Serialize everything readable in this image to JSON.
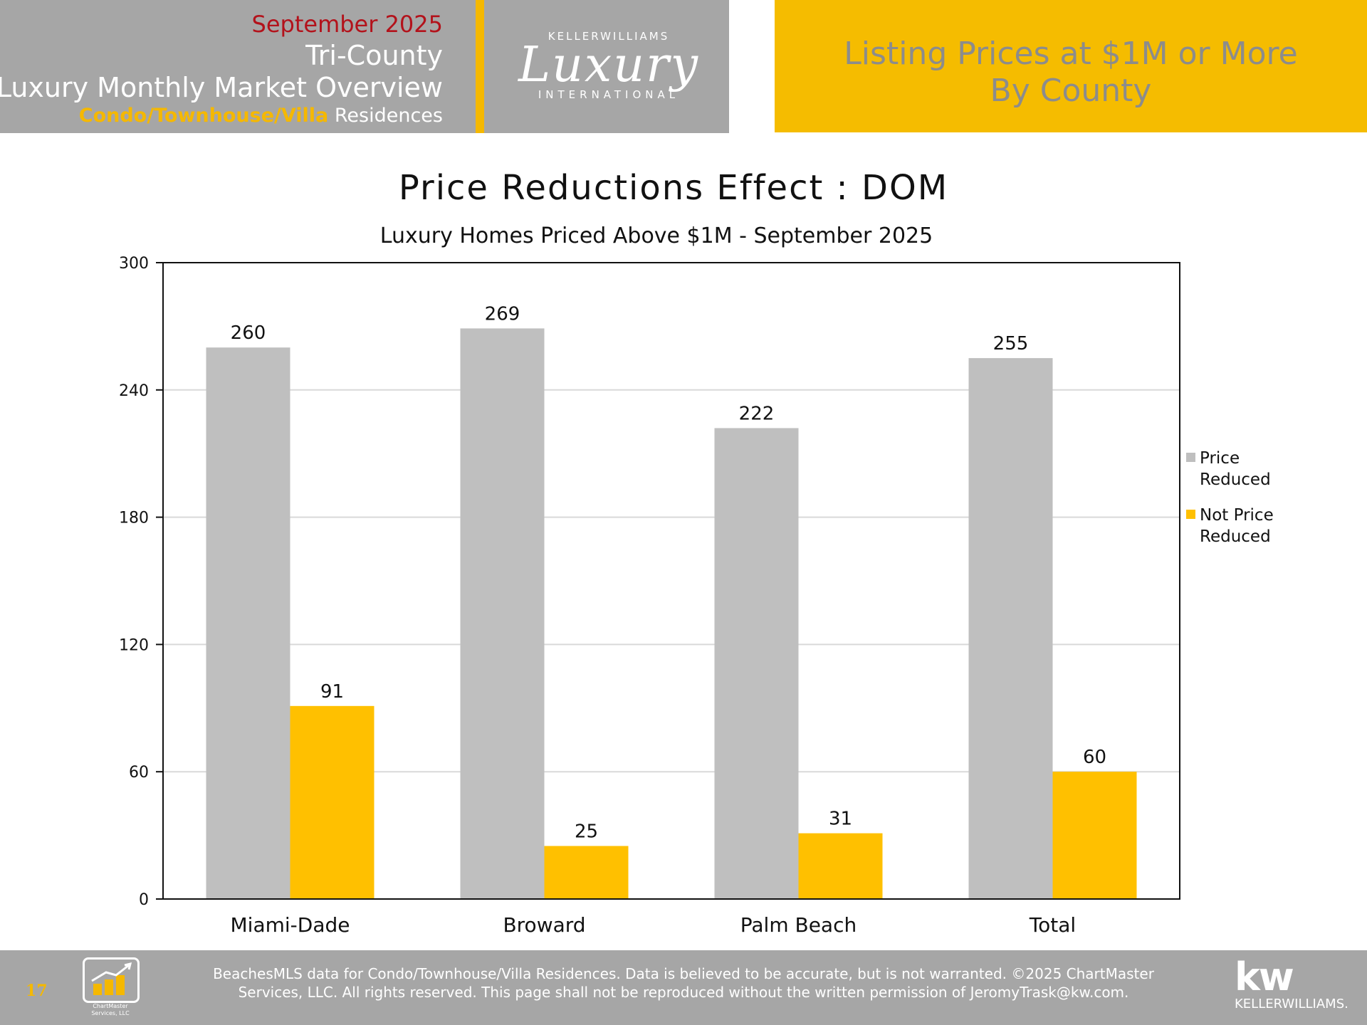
{
  "header": {
    "month": "September 2025",
    "region": "Tri-County",
    "overview": "Luxury Monthly Market Overview",
    "property_type_highlight": "Condo/Townhouse/Villa",
    "property_type_suffix": "Residences",
    "logo_brand": "KELLERWILLIAMS",
    "logo_script": "Luxury",
    "logo_intl": "INTERNATIONAL",
    "right_title_line1": "Listing Prices at $1M or More",
    "right_title_line2": "By County"
  },
  "colors": {
    "gold": "#f5bc00",
    "gray_header": "#a6a6a6",
    "bar_gray": "#bfbfbf",
    "bar_gold": "#ffc000",
    "month_red": "#b3121b"
  },
  "chart_data": {
    "type": "bar",
    "title": "Price Reductions Effect : DOM",
    "subtitle": "Luxury Homes Priced Above $1M - September 2025",
    "categories": [
      "Miami-Dade",
      "Broward",
      "Palm Beach",
      "Total"
    ],
    "series": [
      {
        "name": "Price Reduced",
        "legend_line1": "Price",
        "legend_line2": "Reduced",
        "color": "#bfbfbf",
        "values": [
          260,
          269,
          222,
          255
        ]
      },
      {
        "name": "Not Price Reduced",
        "legend_line1": "Not Price",
        "legend_line2": "Reduced",
        "color": "#ffc000",
        "values": [
          91,
          25,
          31,
          60
        ]
      }
    ],
    "ylim": [
      0,
      300
    ],
    "yticks": [
      0,
      60,
      120,
      180,
      240,
      300
    ],
    "grid": true,
    "legend_position": "right",
    "xlabel": "",
    "ylabel": ""
  },
  "footer": {
    "page_number": "17",
    "chartmaster_line1": "ChartMaster",
    "chartmaster_line2": "Services, LLC",
    "note_line1": "BeachesMLS data for Condo/Townhouse/Villa Residences.  Data is believed to be accurate, but is not warranted.   ©2025  ChartMaster",
    "note_line2": "Services, LLC.  All rights reserved. This page shall not be reproduced without the written permission of JeromyTrask@kw.com.",
    "kw_mark": "kw",
    "kw_name": "KELLERWILLIAMS."
  }
}
